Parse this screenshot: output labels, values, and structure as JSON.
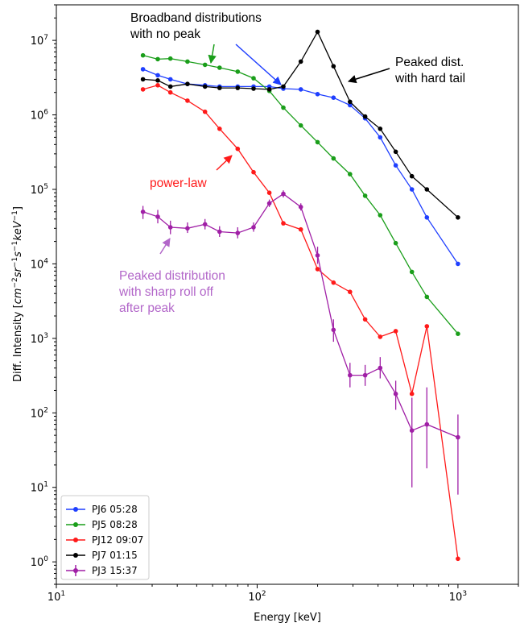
{
  "chart_data": {
    "type": "line",
    "xscale": "log",
    "yscale": "log",
    "xlim": [
      10,
      2000
    ],
    "ylim": [
      0.5,
      30000000
    ],
    "xlabel": "Energy [keV]",
    "ylabel": "Diff. Intensity [cm^-2 sr^-1 s^-1 keV^-1]",
    "x_ticks": [
      {
        "value": 10,
        "base": "10",
        "exp": "1"
      },
      {
        "value": 100,
        "base": "10",
        "exp": "2"
      },
      {
        "value": 1000,
        "base": "10",
        "exp": "3"
      }
    ],
    "y_ticks": [
      {
        "value": 1,
        "base": "10",
        "exp": "0"
      },
      {
        "value": 10,
        "base": "10",
        "exp": "1"
      },
      {
        "value": 100,
        "base": "10",
        "exp": "2"
      },
      {
        "value": 1000,
        "base": "10",
        "exp": "3"
      },
      {
        "value": 10000,
        "base": "10",
        "exp": "4"
      },
      {
        "value": 100000,
        "base": "10",
        "exp": "5"
      },
      {
        "value": 1000000,
        "base": "10",
        "exp": "6"
      },
      {
        "value": 10000000,
        "base": "10",
        "exp": "7"
      }
    ],
    "grid": false,
    "legend_position": "lower-left",
    "series": [
      {
        "name": "PJ6 05:28",
        "color": "#1f3fff",
        "x": [
          27,
          32,
          37,
          45,
          55,
          65,
          80,
          96,
          115,
          135,
          165,
          200,
          240,
          290,
          345,
          410,
          490,
          590,
          700,
          1000
        ],
        "y": [
          4100000,
          3400000,
          3000000,
          2600000,
          2500000,
          2400000,
          2400000,
          2400000,
          2400000,
          2250000,
          2200000,
          1900000,
          1700000,
          1350000,
          900000,
          500000,
          210000,
          100000,
          42000,
          10000
        ]
      },
      {
        "name": "PJ5 08:28",
        "color": "#1a9e1a",
        "x": [
          27,
          32,
          37,
          45,
          55,
          65,
          80,
          96,
          115,
          135,
          165,
          200,
          240,
          290,
          345,
          410,
          490,
          590,
          700,
          1000
        ],
        "y": [
          6300000,
          5600000,
          5700000,
          5200000,
          4700000,
          4300000,
          3800000,
          3100000,
          2100000,
          1250000,
          720000,
          430000,
          260000,
          160000,
          82000,
          45000,
          19000,
          7800,
          3600,
          1150
        ]
      },
      {
        "name": "PJ12 09:07",
        "color": "#ff1a1a",
        "x": [
          27,
          32,
          37,
          45,
          55,
          65,
          80,
          96,
          115,
          135,
          165,
          200,
          240,
          290,
          345,
          410,
          490,
          590,
          700,
          1000
        ],
        "y": [
          2200000,
          2500000,
          2000000,
          1550000,
          1100000,
          650000,
          350000,
          170000,
          90000,
          35000,
          29000,
          8500,
          5600,
          4200,
          1800,
          1050,
          1250,
          180,
          1450,
          1.1
        ]
      },
      {
        "name": "PJ7 01:15",
        "color": "#000000",
        "x": [
          27,
          32,
          37,
          45,
          55,
          65,
          80,
          96,
          115,
          135,
          165,
          200,
          240,
          290,
          345,
          410,
          490,
          590,
          700,
          1000
        ],
        "y": [
          3000000,
          2900000,
          2400000,
          2600000,
          2400000,
          2300000,
          2300000,
          2250000,
          2200000,
          2400000,
          5200000,
          13000000,
          4500000,
          1500000,
          950000,
          650000,
          320000,
          150000,
          100000,
          42000
        ]
      },
      {
        "name": "PJ3 15:37",
        "color": "#a01fa6",
        "x": [
          27,
          32,
          37,
          45,
          55,
          65,
          80,
          96,
          115,
          135,
          165,
          200,
          240,
          290,
          345,
          410,
          490,
          590,
          700,
          1000
        ],
        "y": [
          50000,
          43000,
          31000,
          30000,
          34000,
          27000,
          26000,
          31000,
          65000,
          87000,
          58000,
          13000,
          1300,
          320,
          320,
          400,
          180,
          58,
          70,
          47
        ],
        "err_lo": [
          40000,
          35000,
          25000,
          26000,
          29000,
          23000,
          22000,
          27000,
          58000,
          78000,
          52000,
          10000,
          900,
          220,
          230,
          290,
          110,
          10,
          18,
          8
        ],
        "err_hi": [
          60000,
          53000,
          38000,
          36000,
          40000,
          32000,
          31000,
          36000,
          73000,
          97000,
          65000,
          17000,
          1800,
          470,
          440,
          560,
          270,
          160,
          220,
          95
        ]
      }
    ],
    "annotations": [
      {
        "id": "broadband",
        "lines": [
          "Broadband distributions",
          "with no peak"
        ],
        "color": "#000000"
      },
      {
        "id": "peaked-hard",
        "lines": [
          "Peaked dist.",
          "with hard tail"
        ],
        "color": "#000000"
      },
      {
        "id": "power-law",
        "lines": [
          "power-law"
        ],
        "color": "#ff1a1a"
      },
      {
        "id": "sharp-rolloff",
        "lines": [
          "Peaked distribution",
          "with sharp roll off",
          "after peak"
        ],
        "color": "#b266c9"
      }
    ],
    "arrows": [
      {
        "color": "#1a9e1a"
      },
      {
        "color": "#1f3fff"
      },
      {
        "color": "#000000"
      },
      {
        "color": "#ff1a1a"
      },
      {
        "color": "#b266c9"
      }
    ]
  }
}
